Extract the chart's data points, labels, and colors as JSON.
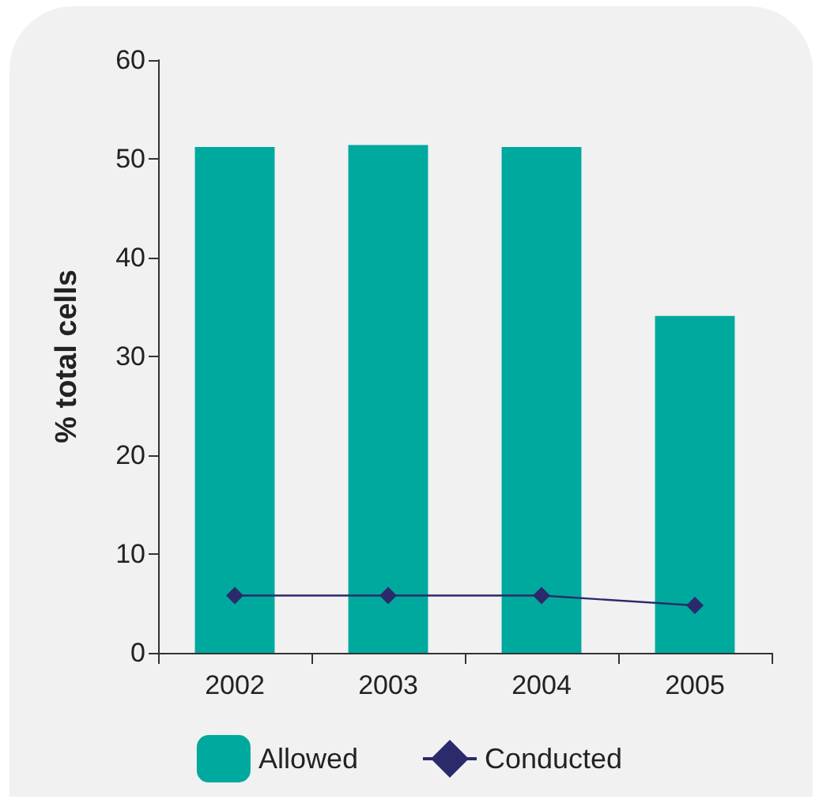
{
  "chart_data": {
    "type": "bar",
    "ylabel": "% total cells",
    "categories": [
      "2002",
      "2003",
      "2004",
      "2005"
    ],
    "series": [
      {
        "name": "Allowed",
        "color": "#00a99d",
        "values": [
          51.2,
          51.4,
          51.2,
          34.1
        ]
      },
      {
        "name": "Conducted",
        "type": "line",
        "color": "#2b2a6b",
        "values": [
          5.8,
          5.8,
          5.8,
          4.8
        ],
        "marker": "diamond",
        "line_style": "solid"
      }
    ],
    "ylim": [
      0,
      60
    ],
    "yticks": [
      0,
      10,
      20,
      30,
      40,
      50,
      60
    ],
    "grid": false,
    "legend": "bottom"
  }
}
